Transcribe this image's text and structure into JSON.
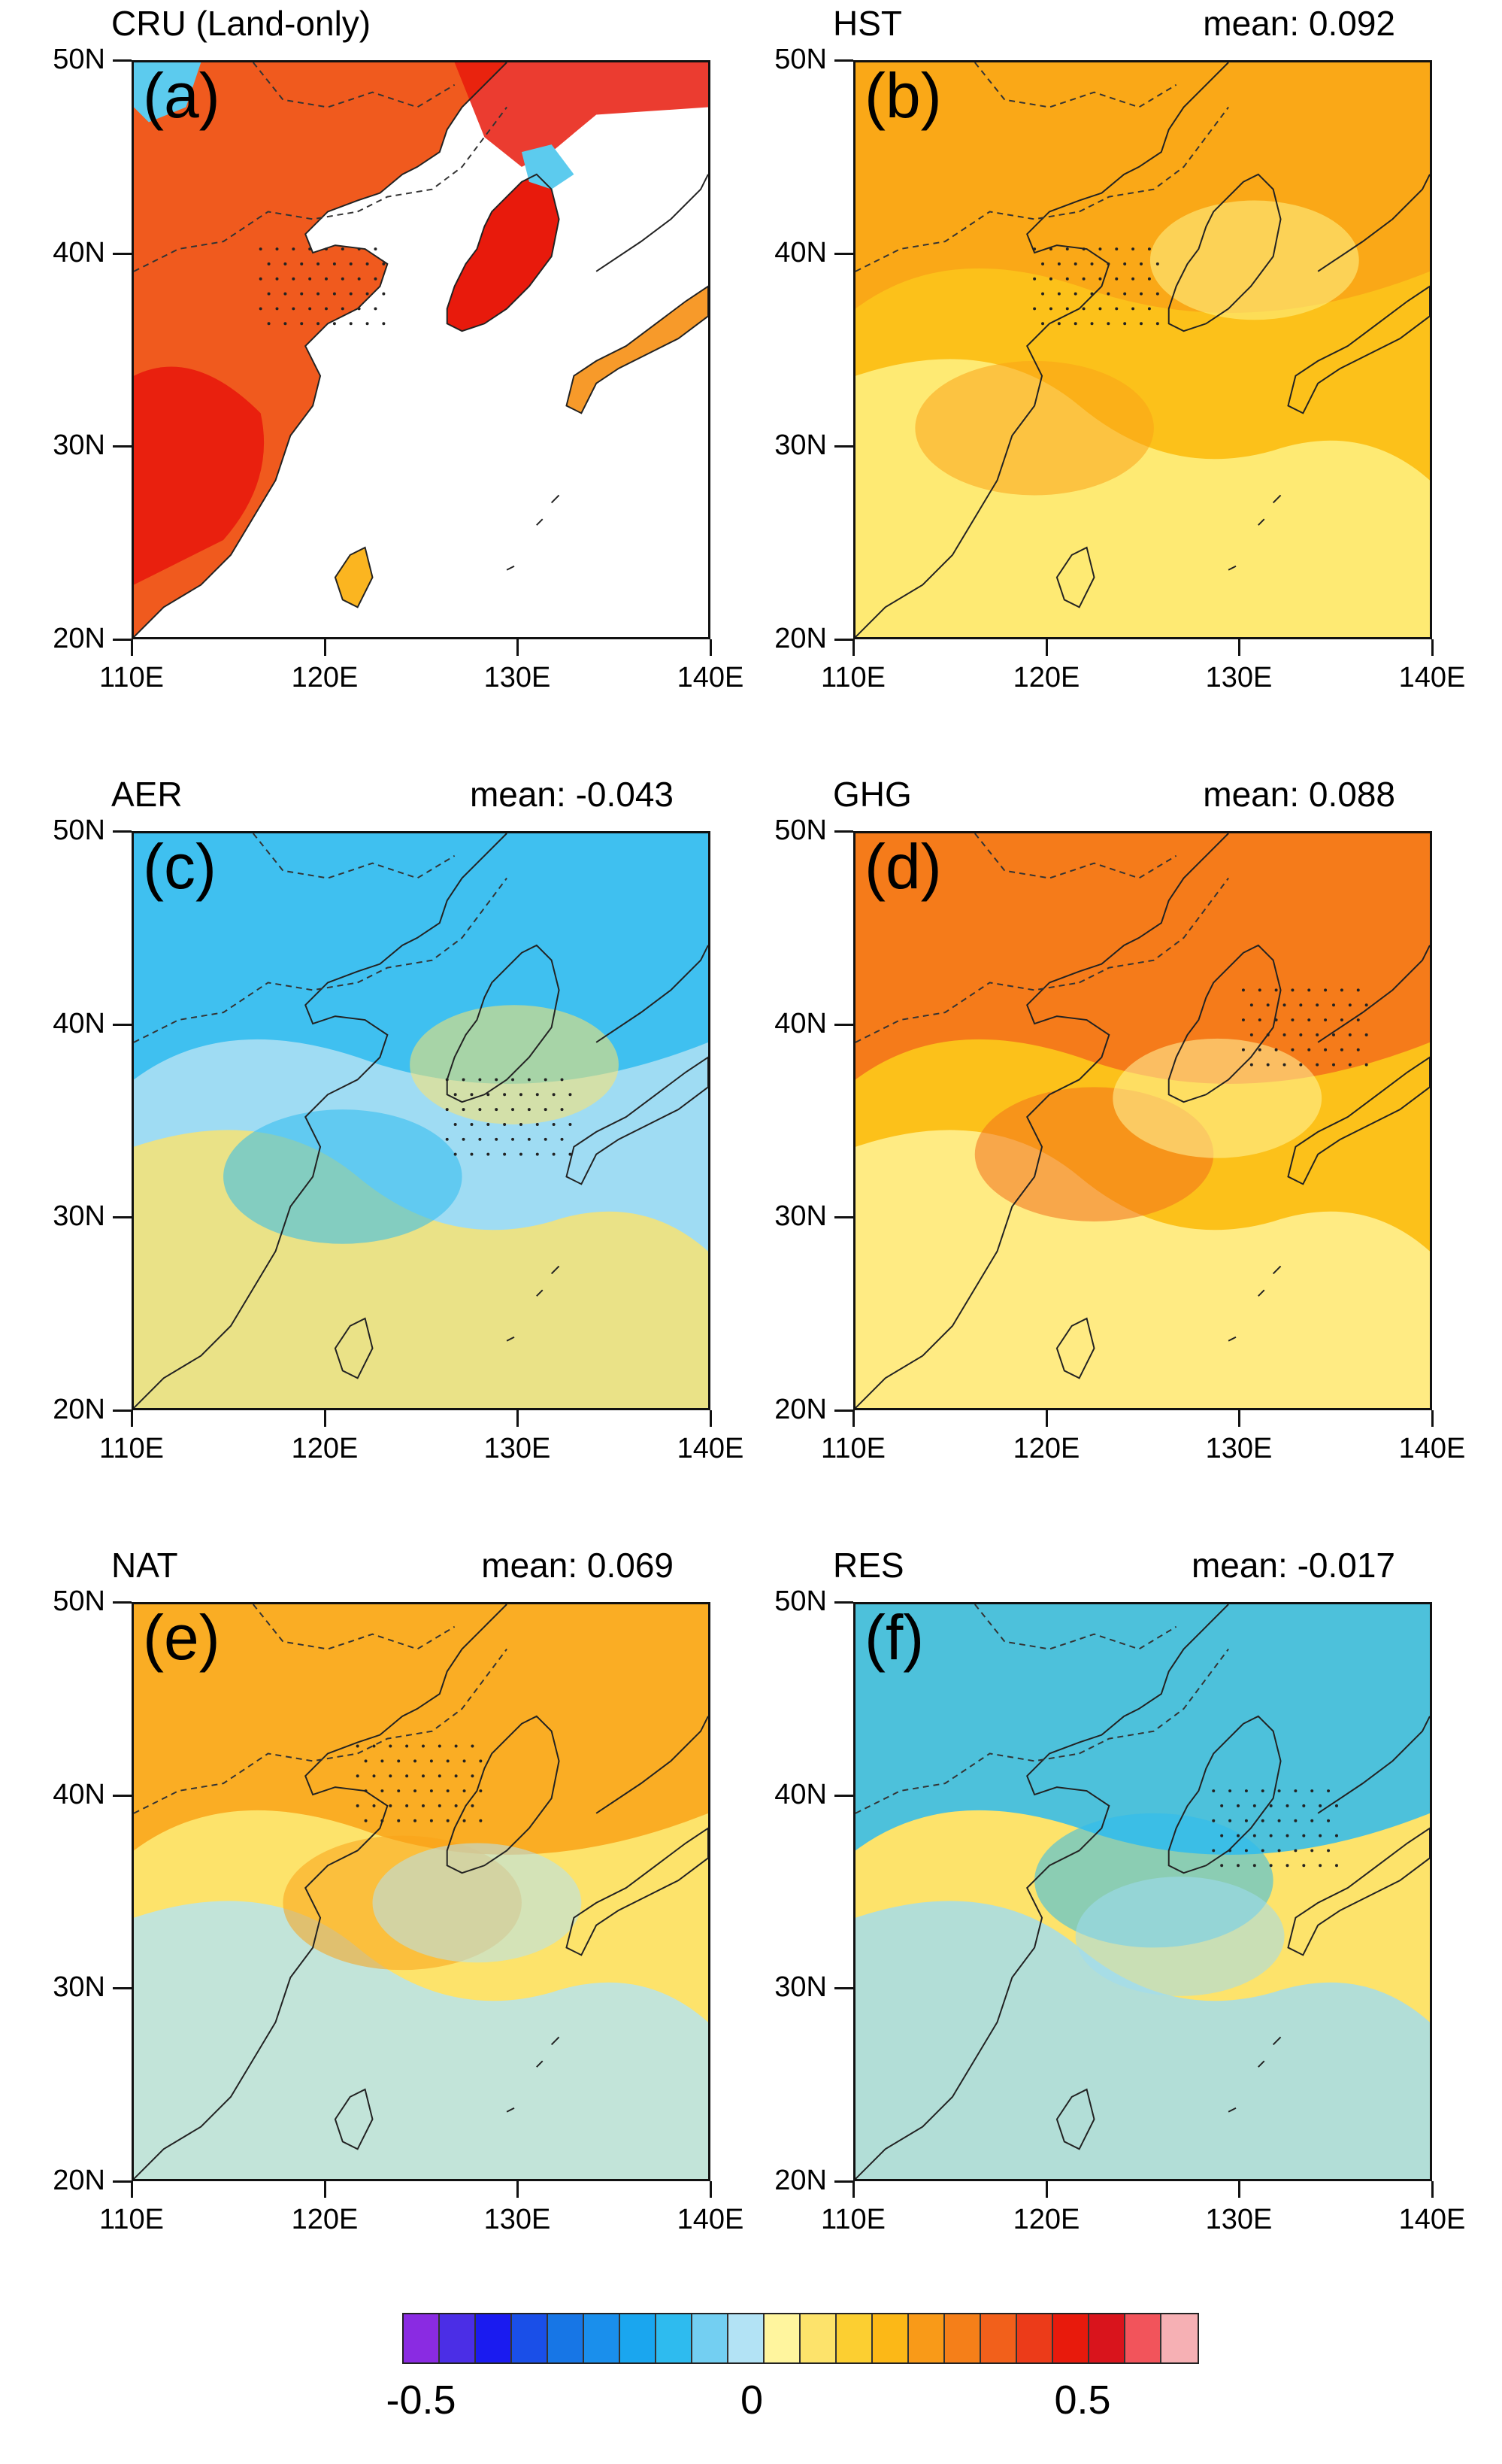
{
  "lat_labels": [
    "50N",
    "40N",
    "30N",
    "20N"
  ],
  "lon_labels": [
    "110E",
    "120E",
    "130E",
    "140E"
  ],
  "panels": [
    {
      "title": "CRU (Land-only)",
      "mean": "",
      "letter": "(a)",
      "fill": "land-only",
      "base_color": "#f05a1e",
      "accent_color": "#e81a0c",
      "cool_color": "#5ccbee"
    },
    {
      "title": "HST",
      "mean": "mean: 0.092",
      "letter": "(b)",
      "base_color": "#fcc11a",
      "accent_color": "#f9a318",
      "cool_color": "#fef48a"
    },
    {
      "title": "AER",
      "mean": "mean: -0.043",
      "letter": "(c)",
      "base_color": "#9fdcf3",
      "accent_color": "#2ebbef",
      "cool_color": "#fde36b"
    },
    {
      "title": "GHG",
      "mean": "mean: 0.088",
      "letter": "(d)",
      "base_color": "#fcc11a",
      "accent_color": "#f36f1b",
      "cool_color": "#fff59e"
    },
    {
      "title": "NAT",
      "mean": "mean: 0.069",
      "letter": "(e)",
      "base_color": "#fde36b",
      "accent_color": "#f9a318",
      "cool_color": "#b3e3f5"
    },
    {
      "title": "RES",
      "mean": "mean: -0.017",
      "letter": "(f)",
      "base_color": "#fde36b",
      "accent_color": "#2ebbef",
      "cool_color": "#9fdcf3"
    }
  ],
  "colorbar": {
    "colors": [
      "#8a2be2",
      "#4b2ee6",
      "#1a1bf0",
      "#1a4fe8",
      "#1776e6",
      "#1a8fec",
      "#1aa6ef",
      "#2ebbef",
      "#73cff2",
      "#b3e3f5",
      "#fff59e",
      "#fde36b",
      "#fccf31",
      "#fcb817",
      "#f99a18",
      "#f57f19",
      "#f2601b",
      "#ec3b19",
      "#e81a0c",
      "#d9141c",
      "#f2545b",
      "#f6b0b4"
    ],
    "labels": [
      "-0.5",
      "0",
      "0.5"
    ]
  }
}
